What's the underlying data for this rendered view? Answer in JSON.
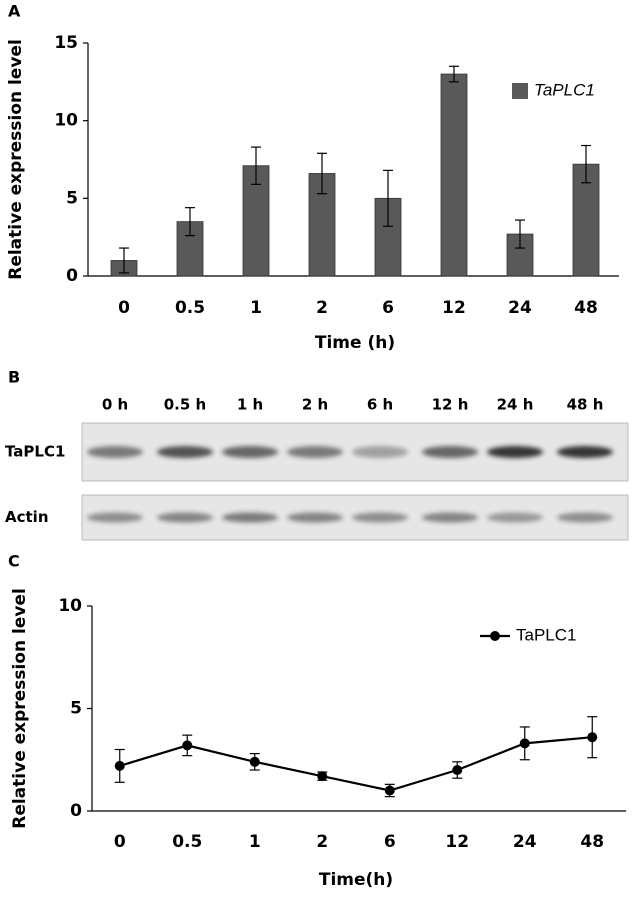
{
  "chart_data": [
    {
      "type": "bar",
      "panel_label": "A",
      "ylabel": "Relative expression level",
      "xlabel": "Time (h)",
      "categories": [
        "0",
        "0.5",
        "1",
        "2",
        "6",
        "12",
        "24",
        "48"
      ],
      "series": [
        {
          "name": "TaPLC1",
          "color": "#595959",
          "values": [
            1.0,
            3.5,
            7.1,
            6.6,
            5.0,
            13.0,
            2.7,
            7.2
          ],
          "errors": [
            0.8,
            0.9,
            1.2,
            1.3,
            1.8,
            0.5,
            0.9,
            1.2
          ]
        }
      ],
      "ylim": [
        0,
        15
      ],
      "yticks": [
        0,
        5,
        10,
        15
      ],
      "legend": "top-right",
      "legend_italic": true
    },
    {
      "type": "line",
      "panel_label": "C",
      "ylabel": "Relative expression level",
      "xlabel": "Time(h)",
      "categories": [
        "0",
        "0.5",
        "1",
        "2",
        "6",
        "12",
        "24",
        "48"
      ],
      "series": [
        {
          "name": "TaPLC1",
          "color": "#000000",
          "values": [
            2.2,
            3.2,
            2.4,
            1.7,
            1.0,
            2.0,
            3.3,
            3.6
          ],
          "errors": [
            0.8,
            0.5,
            0.4,
            0.2,
            0.3,
            0.4,
            0.8,
            1.0
          ]
        }
      ],
      "ylim": [
        0,
        10
      ],
      "yticks": [
        0,
        5,
        10
      ],
      "legend": "top-right",
      "legend_italic": false
    }
  ],
  "blot": {
    "panel_label": "B",
    "lanes": [
      "0 h",
      "0.5 h",
      "1 h",
      "2 h",
      "6 h",
      "12 h",
      "24 h",
      "48 h"
    ],
    "rows": [
      "TaPLC1",
      "Actin"
    ]
  }
}
